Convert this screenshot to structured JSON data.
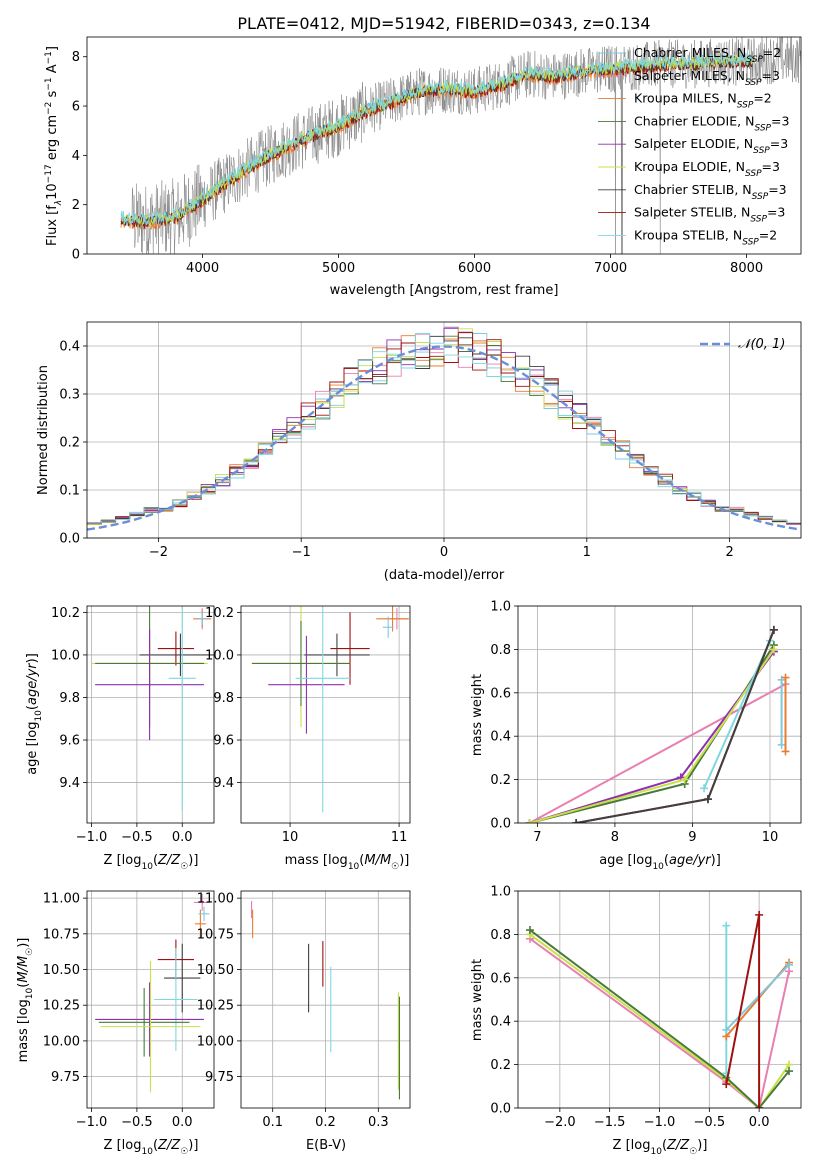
{
  "title": "PLATE=0412, MJD=51942, FIBERID=0343, z=0.134",
  "colors": {
    "Chabrier MILES": "#7fc8e0",
    "Salpeter MILES": "#e87fb0",
    "Kroupa MILES": "#e87d2e",
    "Chabrier ELODIE": "#4a7a3a",
    "Salpeter ELODIE": "#8e2fb0",
    "Kroupa ELODIE": "#c8e04a",
    "Chabrier STELIB": "#404040",
    "Salpeter STELIB": "#a01010",
    "Kroupa STELIB": "#7fd8e0",
    "data": "#808080",
    "normal": "#6a8fd8"
  },
  "chart_data": [
    {
      "type": "line",
      "panel": "spectrum",
      "title": "PLATE=0412, MJD=51942, FIBERID=0343, z=0.134",
      "xlabel": "wavelength [Angstrom, rest frame]",
      "ylabel": "Flux [f_λ 10^-17 erg cm^-2 s^-1 A^-1]",
      "xlim": [
        3150,
        8400
      ],
      "ylim": [
        0,
        8.8
      ],
      "xticks": [
        4000,
        5000,
        6000,
        7000,
        8000
      ],
      "yticks": [
        0,
        2,
        4,
        6,
        8
      ],
      "legend_position": "top-right",
      "legend": [
        {
          "label": "Chabrier MILES, N",
          "sub": "SSP",
          "n": "=2",
          "key": "Chabrier MILES"
        },
        {
          "label": "Salpeter MILES, N",
          "sub": "SSP",
          "n": "=3",
          "key": "Salpeter MILES"
        },
        {
          "label": "Kroupa MILES, N",
          "sub": "SSP",
          "n": "=2",
          "key": "Kroupa MILES"
        },
        {
          "label": "Chabrier ELODIE, N",
          "sub": "SSP",
          "n": "=3",
          "key": "Chabrier ELODIE"
        },
        {
          "label": "Salpeter ELODIE, N",
          "sub": "SSP",
          "n": "=3",
          "key": "Salpeter ELODIE"
        },
        {
          "label": "Kroupa ELODIE, N",
          "sub": "SSP",
          "n": "=3",
          "key": "Kroupa ELODIE"
        },
        {
          "label": "Chabrier STELIB, N",
          "sub": "SSP",
          "n": "=3",
          "key": "Chabrier STELIB"
        },
        {
          "label": "Salpeter STELIB, N",
          "sub": "SSP",
          "n": "=3",
          "key": "Salpeter STELIB"
        },
        {
          "label": "Kroupa STELIB, N",
          "sub": "SSP",
          "n": "=2",
          "key": "Kroupa STELIB"
        }
      ],
      "continuum": {
        "x": [
          3400,
          3600,
          3800,
          4000,
          4200,
          4400,
          4600,
          4800,
          5000,
          5200,
          5400,
          5600,
          5800,
          6000,
          6200,
          6400,
          6600,
          6800,
          7000,
          7200,
          7400,
          7600,
          7800,
          8000,
          8200
        ],
        "y": [
          1.4,
          1.3,
          1.5,
          2.2,
          3.0,
          3.7,
          4.3,
          4.8,
          5.2,
          5.8,
          6.2,
          6.6,
          6.7,
          6.6,
          6.9,
          7.3,
          7.2,
          7.4,
          7.5,
          7.6,
          7.7,
          7.7,
          7.8,
          7.8,
          7.9
        ]
      }
    },
    {
      "type": "line",
      "panel": "residuals",
      "xlabel": "(data-model)/error",
      "ylabel": "Normed distribution",
      "xlim": [
        -2.5,
        2.5
      ],
      "ylim": [
        0,
        0.45
      ],
      "xticks": [
        -2,
        -1,
        0,
        1,
        2
      ],
      "yticks": [
        0.0,
        0.1,
        0.2,
        0.3,
        0.4
      ],
      "legend": "𝒩(0, 1)",
      "legend_position": "top-right",
      "grid": true
    },
    {
      "type": "scatter",
      "panel": "age-vs-Z",
      "xlabel": "Z [log10(Z/Z☉)]",
      "ylabel": "age  [log10(age/yr)]",
      "xlim": [
        -1.05,
        0.35
      ],
      "ylim": [
        9.21,
        10.23
      ],
      "xticks": [
        -1.0,
        -0.5,
        0.0
      ],
      "yticks": [
        9.4,
        9.6,
        9.8,
        10.0,
        10.2
      ],
      "grid": true,
      "points": [
        {
          "key": "Salpeter STELIB",
          "x": -0.07,
          "y": 10.03,
          "xerr": 0.2,
          "yerr": 0.08
        },
        {
          "key": "Chabrier STELIB",
          "x": -0.02,
          "y": 10.0,
          "xerr": 0.45,
          "yerr": 0.1
        },
        {
          "key": "Kroupa ELODIE",
          "x": -0.36,
          "y": 9.96,
          "xerr": 0.64,
          "yerr": 0.12
        },
        {
          "key": "Chabrier ELODIE",
          "x": -0.36,
          "y": 9.96,
          "xerr": 0.6,
          "yerr": 0.3
        },
        {
          "key": "Salpeter ELODIE",
          "x": -0.36,
          "y": 9.86,
          "xerr": 0.6,
          "yerr": 0.26
        },
        {
          "key": "Kroupa STELIB",
          "x": 0.0,
          "y": 9.89,
          "xerr": 0.15,
          "yerr": 0.62
        },
        {
          "key": "Salpeter MILES",
          "x": 0.22,
          "y": 10.17,
          "xerr": 0.05,
          "yerr": 0.05
        },
        {
          "key": "Kroupa MILES",
          "x": 0.22,
          "y": 10.17,
          "xerr": 0.1,
          "yerr": 0.04
        },
        {
          "key": "Chabrier MILES",
          "x": 0.22,
          "y": 10.17,
          "xerr": 0.05,
          "yerr": 0.03
        }
      ]
    },
    {
      "type": "scatter",
      "panel": "age-vs-mass",
      "xlabel": "mass [log10(M/M☉)]",
      "xlim": [
        9.55,
        11.1
      ],
      "ylim": [
        9.21,
        10.23
      ],
      "xticks": [
        10,
        11
      ],
      "yticks": [
        9.4,
        9.6,
        9.8,
        10.0,
        10.2
      ],
      "grid": true,
      "points": [
        {
          "key": "Salpeter STELIB",
          "x": 10.55,
          "y": 10.03,
          "xerr": 0.18,
          "yerr": 0.17
        },
        {
          "key": "Chabrier STELIB",
          "x": 10.43,
          "y": 10.0,
          "xerr": 0.3,
          "yerr": 0.1
        },
        {
          "key": "Kroupa ELODIE",
          "x": 10.1,
          "y": 9.96,
          "xerr": 0.45,
          "yerr": 0.3
        },
        {
          "key": "Chabrier ELODIE",
          "x": 10.1,
          "y": 9.96,
          "xerr": 0.45,
          "yerr": 0.2
        },
        {
          "key": "Salpeter ELODIE",
          "x": 10.15,
          "y": 9.86,
          "xerr": 0.35,
          "yerr": 0.23
        },
        {
          "key": "Kroupa STELIB",
          "x": 10.3,
          "y": 9.89,
          "xerr": 0.25,
          "yerr": 0.63
        },
        {
          "key": "Salpeter MILES",
          "x": 10.98,
          "y": 10.17,
          "xerr": 0.1,
          "yerr": 0.05
        },
        {
          "key": "Kroupa MILES",
          "x": 10.94,
          "y": 10.17,
          "xerr": 0.15,
          "yerr": 0.06
        },
        {
          "key": "Chabrier MILES",
          "x": 10.9,
          "y": 10.13,
          "xerr": 0.05,
          "yerr": 0.05
        }
      ]
    },
    {
      "type": "line",
      "panel": "mass-weight-vs-age",
      "xlabel": "age  [log10(age/yr)]",
      "ylabel": "mass weight",
      "xlim": [
        6.75,
        10.4
      ],
      "ylim": [
        0,
        1
      ],
      "xticks": [
        7,
        8,
        9,
        10
      ],
      "yticks": [
        0.0,
        0.2,
        0.4,
        0.6,
        0.8,
        1.0
      ],
      "grid": true,
      "series": [
        {
          "key": "Salpeter MILES",
          "x": [
            6.9,
            10.2
          ],
          "y": [
            0.0,
            0.64
          ]
        },
        {
          "key": "Chabrier ELODIE",
          "x": [
            6.9,
            8.9,
            10.05
          ],
          "y": [
            0.0,
            0.18,
            0.82
          ]
        },
        {
          "key": "Salpeter ELODIE",
          "x": [
            6.9,
            8.85,
            10.05
          ],
          "y": [
            0.0,
            0.21,
            0.79
          ]
        },
        {
          "key": "Kroupa ELODIE",
          "x": [
            6.9,
            8.9,
            10.05
          ],
          "y": [
            0.0,
            0.2,
            0.8
          ]
        },
        {
          "key": "Kroupa STELIB",
          "x": [
            9.15,
            10.0
          ],
          "y": [
            0.16,
            0.84
          ]
        },
        {
          "key": "Chabrier MILES",
          "x": [
            10.15,
            10.15
          ],
          "y": [
            0.36,
            0.66
          ]
        },
        {
          "key": "Kroupa MILES",
          "x": [
            10.2,
            10.2
          ],
          "y": [
            0.33,
            0.67
          ]
        },
        {
          "key": "Salpeter STELIB",
          "x": [
            7.5,
            9.2,
            10.05
          ],
          "y": [
            0.0,
            0.11,
            0.89
          ]
        },
        {
          "key": "Chabrier STELIB",
          "x": [
            7.5,
            9.2,
            10.05
          ],
          "y": [
            0.0,
            0.11,
            0.89
          ]
        }
      ]
    },
    {
      "type": "scatter",
      "panel": "mass-vs-Z",
      "xlabel": "Z [log10(Z/Z☉)]",
      "ylabel": "mass [log10(M/M☉)]",
      "xlim": [
        -1.05,
        0.35
      ],
      "ylim": [
        9.53,
        11.05
      ],
      "xticks": [
        -1.0,
        -0.5,
        0.0
      ],
      "yticks": [
        9.75,
        10.0,
        10.25,
        10.5,
        10.75,
        11.0
      ],
      "grid": true,
      "points": [
        {
          "key": "Salpeter STELIB",
          "x": -0.07,
          "y": 10.57,
          "xerr": 0.2,
          "yerr": 0.14
        },
        {
          "key": "Chabrier STELIB",
          "x": 0.0,
          "y": 10.44,
          "xerr": 0.2,
          "yerr": 0.24
        },
        {
          "key": "Kroupa STELIB",
          "x": -0.07,
          "y": 10.29,
          "xerr": 0.24,
          "yerr": 0.36
        },
        {
          "key": "Salpeter ELODIE",
          "x": -0.36,
          "y": 10.15,
          "xerr": 0.6,
          "yerr": 0.26
        },
        {
          "key": "Chabrier ELODIE",
          "x": -0.42,
          "y": 10.13,
          "xerr": 0.5,
          "yerr": 0.24
        },
        {
          "key": "Kroupa ELODIE",
          "x": -0.35,
          "y": 10.1,
          "xerr": 0.55,
          "yerr": 0.46
        },
        {
          "key": "Salpeter MILES",
          "x": 0.22,
          "y": 10.97,
          "xerr": 0.09,
          "yerr": 0.06
        },
        {
          "key": "Kroupa MILES",
          "x": 0.2,
          "y": 10.82,
          "xerr": 0.06,
          "yerr": 0.1
        },
        {
          "key": "Chabrier MILES",
          "x": 0.24,
          "y": 10.89,
          "xerr": 0.06,
          "yerr": 0.05
        }
      ]
    },
    {
      "type": "scatter",
      "panel": "mass-vs-EBV",
      "xlabel": "E(B-V)",
      "xlim": [
        0.04,
        0.36
      ],
      "ylim": [
        9.53,
        11.05
      ],
      "xticks": [
        0.1,
        0.2,
        0.3
      ],
      "yticks": [
        9.75,
        10.0,
        10.25,
        10.5,
        10.75,
        11.0
      ],
      "grid": true,
      "points": [
        {
          "key": "Kroupa MILES",
          "x": 0.062,
          "y": 10.82,
          "xerr": 0.0,
          "yerr": 0.1
        },
        {
          "key": "Salpeter MILES",
          "x": 0.06,
          "y": 10.92,
          "xerr": 0.0,
          "yerr": 0.06
        },
        {
          "key": "Chabrier STELIB",
          "x": 0.168,
          "y": 10.44,
          "xerr": 0.0,
          "yerr": 0.24
        },
        {
          "key": "Salpeter STELIB",
          "x": 0.195,
          "y": 10.54,
          "xerr": 0.0,
          "yerr": 0.16
        },
        {
          "key": "Kroupa STELIB",
          "x": 0.21,
          "y": 10.22,
          "xerr": 0.0,
          "yerr": 0.3
        },
        {
          "key": "Kroupa ELODIE",
          "x": 0.338,
          "y": 10.0,
          "xerr": 0.0,
          "yerr": 0.34
        },
        {
          "key": "Chabrier ELODIE",
          "x": 0.34,
          "y": 9.95,
          "xerr": 0.0,
          "yerr": 0.36
        }
      ]
    },
    {
      "type": "line",
      "panel": "mass-weight-vs-Z",
      "xlabel": "Z [log10(Z/Z☉)]",
      "ylabel": "mass weight",
      "xlim": [
        -2.42,
        0.42
      ],
      "ylim": [
        0,
        1
      ],
      "xticks": [
        -2.0,
        -1.5,
        -1.0,
        -0.5,
        0.0
      ],
      "yticks": [
        0.0,
        0.2,
        0.4,
        0.6,
        0.8,
        1.0
      ],
      "grid": true,
      "series": [
        {
          "key": "Salpeter MILES",
          "x": [
            -2.3,
            -0.33,
            0.0,
            0.3
          ],
          "y": [
            0.78,
            0.12,
            0.0,
            0.63
          ]
        },
        {
          "key": "Kroupa ELODIE",
          "x": [
            -2.3,
            -0.33,
            0.0,
            0.3
          ],
          "y": [
            0.8,
            0.13,
            0.0,
            0.2
          ]
        },
        {
          "key": "Chabrier ELODIE",
          "x": [
            -2.3,
            -0.33,
            0.0,
            0.3
          ],
          "y": [
            0.82,
            0.14,
            0.0,
            0.17
          ]
        },
        {
          "key": "Kroupa STELIB",
          "x": [
            -0.33,
            -0.33
          ],
          "y": [
            0.84,
            0.16
          ]
        },
        {
          "key": "Kroupa MILES",
          "x": [
            -0.33,
            0.3
          ],
          "y": [
            0.33,
            0.67
          ]
        },
        {
          "key": "Chabrier MILES",
          "x": [
            -0.33,
            0.3
          ],
          "y": [
            0.36,
            0.66
          ]
        },
        {
          "key": "Salpeter STELIB",
          "x": [
            -0.33,
            0.0,
            0.0
          ],
          "y": [
            0.11,
            0.89,
            0.0
          ]
        }
      ]
    }
  ]
}
